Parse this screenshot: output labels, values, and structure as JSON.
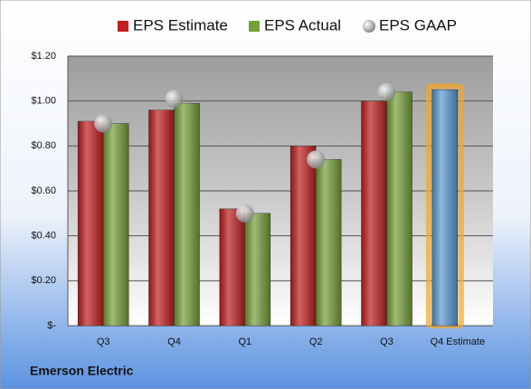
{
  "chart_data": {
    "type": "bar",
    "caption": "Emerson Electric",
    "categories": [
      "Q3",
      "Q4",
      "Q1",
      "Q2",
      "Q3",
      "Q4 Estimate"
    ],
    "series": [
      {
        "name": "EPS Estimate",
        "color": "#c0201f",
        "point_colors": [
          null,
          null,
          null,
          null,
          null,
          "#5b9bd5"
        ],
        "values": [
          0.91,
          0.96,
          0.52,
          0.8,
          1.0,
          1.05
        ]
      },
      {
        "name": "EPS Actual",
        "color": "#77a03a",
        "values": [
          0.9,
          0.99,
          0.5,
          0.74,
          1.04,
          null
        ]
      },
      {
        "name": "EPS GAAP",
        "color": "#a6a6a6",
        "marker": "circle",
        "values": [
          0.9,
          1.01,
          0.5,
          0.74,
          1.04,
          null
        ]
      }
    ],
    "ylim": [
      0,
      1.2
    ],
    "yticks": [
      {
        "value": 0,
        "label": "$-"
      },
      {
        "value": 0.2,
        "label": "$0.20"
      },
      {
        "value": 0.4,
        "label": "$0.40"
      },
      {
        "value": 0.6,
        "label": "$0.60"
      },
      {
        "value": 0.8,
        "label": "$0.80"
      },
      {
        "value": 1.0,
        "label": "$1.00"
      },
      {
        "value": 1.2,
        "label": "$1.20"
      }
    ],
    "grid": true
  }
}
